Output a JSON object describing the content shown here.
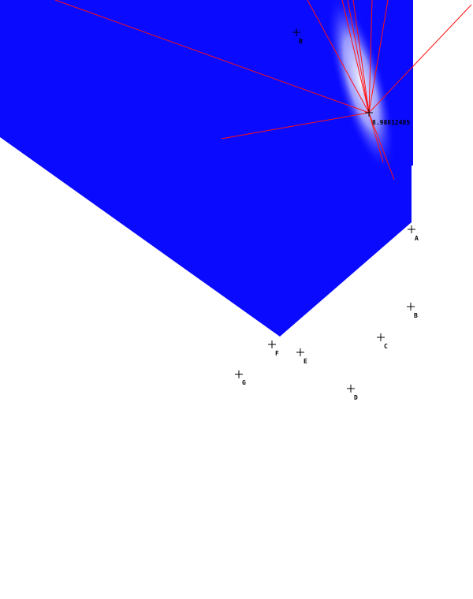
{
  "colors": {
    "region_fill": "#0a0aff",
    "ray_color": "#ff1010",
    "glow_color": "#ffffff",
    "marker_color": "#000000",
    "background": "#ffffff"
  },
  "source": {
    "value_label": "8.98812485"
  },
  "points": [
    {
      "id": "A",
      "label": "A"
    },
    {
      "id": "B",
      "label": "B"
    },
    {
      "id": "C",
      "label": "C"
    },
    {
      "id": "D",
      "label": "D"
    },
    {
      "id": "E",
      "label": "E"
    },
    {
      "id": "F",
      "label": "F"
    },
    {
      "id": "G",
      "label": "G"
    },
    {
      "id": "H",
      "label": "B"
    }
  ]
}
